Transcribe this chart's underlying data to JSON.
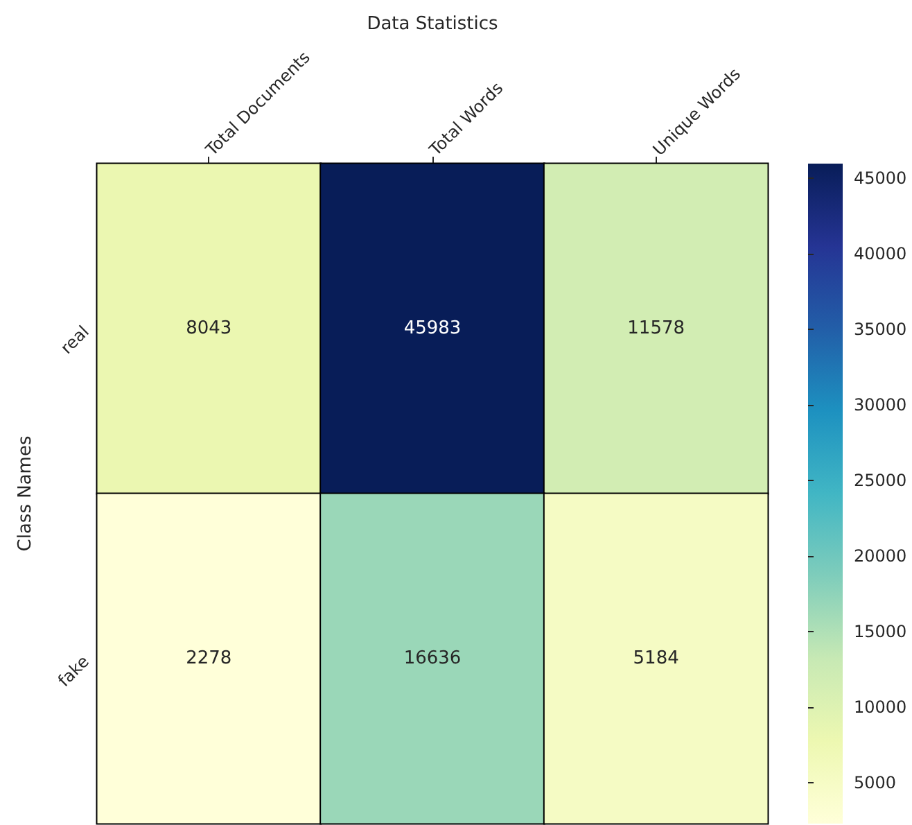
{
  "chart_data": {
    "type": "heatmap",
    "xlabel": "Data Statistics",
    "ylabel": "Class Names",
    "categories": [
      "Total Documents",
      "Total Words",
      "Unique Words"
    ],
    "y_categories": [
      "real",
      "fake"
    ],
    "cells": [
      [
        8043,
        45983,
        11578
      ],
      [
        2278,
        16636,
        5184
      ]
    ],
    "data_labels": true,
    "clim": [
      2278,
      45983
    ],
    "cticks": [
      5000,
      10000,
      15000,
      20000,
      25000,
      30000,
      35000,
      40000,
      45000
    ]
  }
}
